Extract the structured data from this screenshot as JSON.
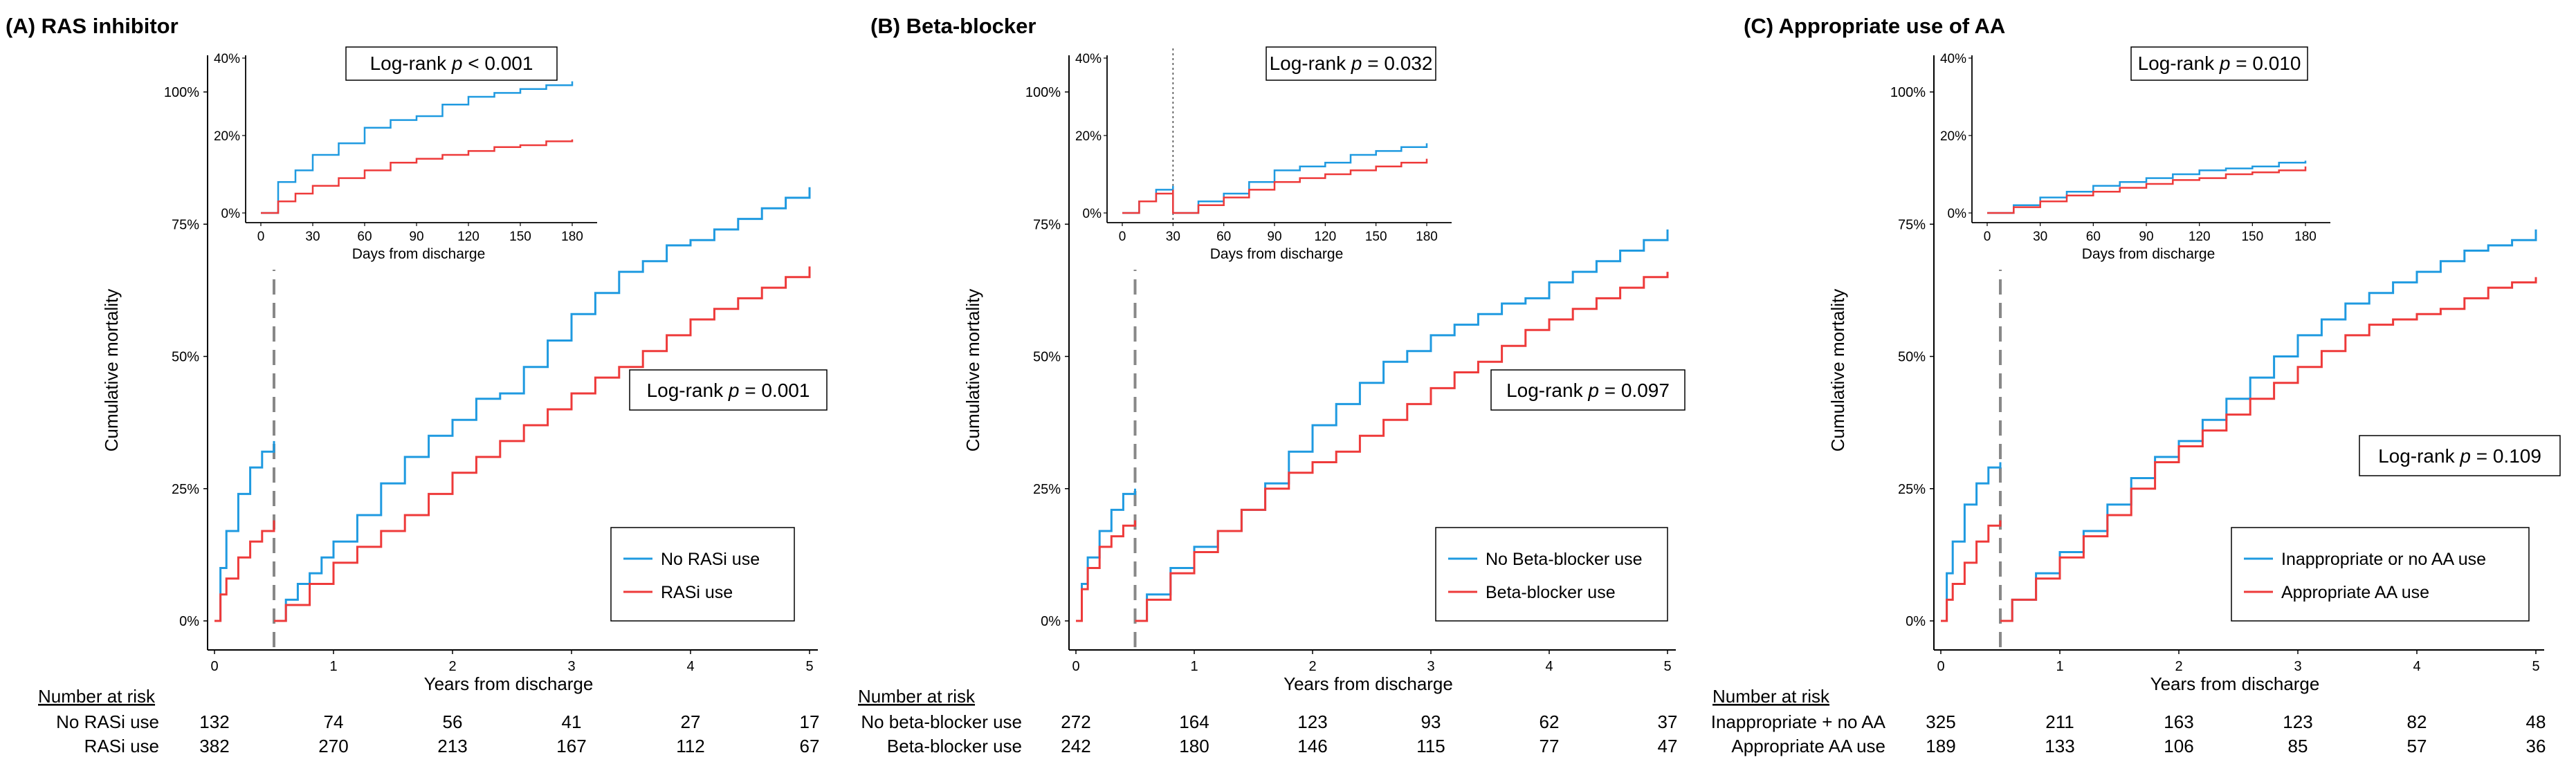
{
  "figure": {
    "panels": [
      {
        "title": "(A) RAS inhibitor",
        "ylabel": "Cumulative mortality",
        "xlabel": "Years from discharge",
        "logrank": {
          "prefix": "Log-rank ",
          "p": "p",
          "suffix": " = 0.001"
        },
        "inset": {
          "logrank": {
            "prefix": "Log-rank ",
            "p": "p",
            "suffix": " < 0.001"
          },
          "xlabel": "Days from discharge"
        },
        "legend": [
          "No RASi use",
          "RASi use"
        ],
        "risk_title": "Number at risk",
        "risk_rows": [
          {
            "label": "No RASi use",
            "values": [
              "132",
              "74",
              "56",
              "41",
              "27",
              "17"
            ]
          },
          {
            "label": "RASi use",
            "values": [
              "382",
              "270",
              "213",
              "167",
              "112",
              "67"
            ]
          }
        ]
      },
      {
        "title": "(B) Beta-blocker",
        "ylabel": "Cumulative mortality",
        "xlabel": "Years from discharge",
        "logrank": {
          "prefix": "Log-rank ",
          "p": "p",
          "suffix": " = 0.097"
        },
        "inset": {
          "logrank": {
            "prefix": "Log-rank ",
            "p": "p",
            "suffix": " = 0.032"
          },
          "xlabel": "Days from discharge"
        },
        "legend": [
          "No Beta-blocker use",
          "Beta-blocker use"
        ],
        "risk_title": "Number at risk",
        "risk_rows": [
          {
            "label": "No beta-blocker use",
            "values": [
              "272",
              "164",
              "123",
              "93",
              "62",
              "37"
            ]
          },
          {
            "label": "Beta-blocker use",
            "values": [
              "242",
              "180",
              "146",
              "115",
              "77",
              "47"
            ]
          }
        ]
      },
      {
        "title": "(C) Appropriate use of AA",
        "ylabel": "Cumulative mortality",
        "xlabel": "Years from discharge",
        "logrank": {
          "prefix": "Log-rank ",
          "p": "p",
          "suffix": " = 0.109"
        },
        "inset": {
          "logrank": {
            "prefix": "Log-rank ",
            "p": "p",
            "suffix": " = 0.010"
          },
          "xlabel": "Days from discharge"
        },
        "legend": [
          "Inappropriate or no AA use",
          "Appropriate AA use"
        ],
        "risk_title": "Number at risk",
        "risk_rows": [
          {
            "label": "Inappropriate + no AA",
            "values": [
              "325",
              "211",
              "163",
              "123",
              "82",
              "48"
            ]
          },
          {
            "label": "Appropriate AA use",
            "values": [
              "189",
              "133",
              "106",
              "85",
              "57",
              "36"
            ]
          }
        ]
      }
    ]
  },
  "chart_data": [
    {
      "type": "line",
      "title": "(A) RAS inhibitor",
      "xlabel": "Years from discharge",
      "ylabel": "Cumulative mortality",
      "xlim": [
        0,
        5
      ],
      "ylim": [
        0,
        1
      ],
      "x_ticks": [
        "0",
        "1",
        "2",
        "3",
        "4",
        "5"
      ],
      "y_ticks": [
        "0%",
        "25%",
        "50%",
        "75%",
        "100%"
      ],
      "landmark_year": 0.5,
      "colors": [
        "#1f9ae0",
        "#ee3a3a"
      ],
      "series": [
        {
          "name": "No RASi use",
          "color": "#1f9ae0",
          "x": [
            0,
            0.05,
            0.1,
            0.2,
            0.3,
            0.4,
            0.5
          ],
          "y": [
            0,
            0.1,
            0.17,
            0.24,
            0.29,
            0.32,
            0.34
          ],
          "x2": [
            0.5,
            0.6,
            0.7,
            0.8,
            0.9,
            1.0,
            1.2,
            1.4,
            1.6,
            1.8,
            2.0,
            2.2,
            2.4,
            2.6,
            2.8,
            3.0,
            3.2,
            3.4,
            3.6,
            3.8,
            4.0,
            4.2,
            4.4,
            4.6,
            4.8,
            5.0
          ],
          "y2": [
            0,
            0.04,
            0.07,
            0.09,
            0.12,
            0.15,
            0.2,
            0.26,
            0.31,
            0.35,
            0.38,
            0.42,
            0.43,
            0.48,
            0.53,
            0.58,
            0.62,
            0.66,
            0.68,
            0.71,
            0.72,
            0.74,
            0.76,
            0.78,
            0.8,
            0.82
          ]
        },
        {
          "name": "RASi use",
          "color": "#ee3a3a",
          "x": [
            0,
            0.05,
            0.1,
            0.2,
            0.3,
            0.4,
            0.5
          ],
          "y": [
            0,
            0.05,
            0.08,
            0.12,
            0.15,
            0.17,
            0.19
          ],
          "x2": [
            0.5,
            0.6,
            0.8,
            1.0,
            1.2,
            1.4,
            1.6,
            1.8,
            2.0,
            2.2,
            2.4,
            2.6,
            2.8,
            3.0,
            3.2,
            3.4,
            3.6,
            3.8,
            4.0,
            4.2,
            4.4,
            4.6,
            4.8,
            5.0
          ],
          "y2": [
            0,
            0.03,
            0.07,
            0.11,
            0.14,
            0.17,
            0.2,
            0.24,
            0.28,
            0.31,
            0.34,
            0.37,
            0.4,
            0.43,
            0.46,
            0.48,
            0.51,
            0.54,
            0.57,
            0.59,
            0.61,
            0.63,
            0.65,
            0.67
          ]
        }
      ],
      "inset": {
        "xlabel": "Days from discharge",
        "xlim": [
          0,
          180
        ],
        "ylim": [
          0,
          0.4
        ],
        "x_ticks": [
          "0",
          "30",
          "60",
          "90",
          "120",
          "150",
          "180"
        ],
        "y_ticks": [
          "0%",
          "20%",
          "40%"
        ],
        "series": [
          {
            "name": "No RASi use",
            "x": [
              0,
              10,
              20,
              30,
              45,
              60,
              75,
              90,
              105,
              120,
              135,
              150,
              165,
              180
            ],
            "y": [
              0,
              0.08,
              0.11,
              0.15,
              0.18,
              0.22,
              0.24,
              0.25,
              0.28,
              0.3,
              0.31,
              0.32,
              0.33,
              0.34
            ]
          },
          {
            "name": "RASi use",
            "x": [
              0,
              10,
              20,
              30,
              45,
              60,
              75,
              90,
              105,
              120,
              135,
              150,
              165,
              180
            ],
            "y": [
              0,
              0.03,
              0.05,
              0.07,
              0.09,
              0.11,
              0.13,
              0.14,
              0.15,
              0.16,
              0.17,
              0.175,
              0.185,
              0.19
            ]
          }
        ]
      }
    },
    {
      "type": "line",
      "title": "(B) Beta-blocker",
      "xlabel": "Years from discharge",
      "ylabel": "Cumulative mortality",
      "xlim": [
        0,
        5
      ],
      "ylim": [
        0,
        1
      ],
      "x_ticks": [
        "0",
        "1",
        "2",
        "3",
        "4",
        "5"
      ],
      "y_ticks": [
        "0%",
        "25%",
        "50%",
        "75%",
        "100%"
      ],
      "landmark_year": 0.5,
      "colors": [
        "#1f9ae0",
        "#ee3a3a"
      ],
      "series": [
        {
          "name": "No Beta-blocker use",
          "color": "#1f9ae0",
          "x": [
            0,
            0.05,
            0.1,
            0.2,
            0.3,
            0.4,
            0.5
          ],
          "y": [
            0,
            0.07,
            0.12,
            0.17,
            0.21,
            0.24,
            0.25
          ],
          "x2": [
            0.5,
            0.6,
            0.8,
            1.0,
            1.2,
            1.4,
            1.6,
            1.8,
            2.0,
            2.2,
            2.4,
            2.6,
            2.8,
            3.0,
            3.2,
            3.4,
            3.6,
            3.8,
            4.0,
            4.2,
            4.4,
            4.6,
            4.8,
            5.0
          ],
          "y2": [
            0,
            0.05,
            0.1,
            0.14,
            0.17,
            0.21,
            0.26,
            0.32,
            0.37,
            0.41,
            0.45,
            0.49,
            0.51,
            0.54,
            0.56,
            0.58,
            0.6,
            0.61,
            0.64,
            0.66,
            0.68,
            0.7,
            0.72,
            0.74
          ]
        },
        {
          "name": "Beta-blocker use",
          "color": "#ee3a3a",
          "x": [
            0,
            0.05,
            0.1,
            0.2,
            0.3,
            0.4,
            0.5
          ],
          "y": [
            0,
            0.06,
            0.1,
            0.14,
            0.16,
            0.18,
            0.19
          ],
          "x2": [
            0.5,
            0.6,
            0.8,
            1.0,
            1.2,
            1.4,
            1.6,
            1.8,
            2.0,
            2.2,
            2.4,
            2.6,
            2.8,
            3.0,
            3.2,
            3.4,
            3.6,
            3.8,
            4.0,
            4.2,
            4.4,
            4.6,
            4.8,
            5.0
          ],
          "y2": [
            0,
            0.04,
            0.09,
            0.13,
            0.17,
            0.21,
            0.25,
            0.28,
            0.3,
            0.32,
            0.35,
            0.38,
            0.41,
            0.44,
            0.47,
            0.49,
            0.52,
            0.55,
            0.57,
            0.59,
            0.61,
            0.63,
            0.65,
            0.66
          ]
        }
      ],
      "inset": {
        "xlabel": "Days from discharge",
        "xlim": [
          0,
          180
        ],
        "ylim": [
          0,
          0.4
        ],
        "x_ticks": [
          "0",
          "30",
          "60",
          "90",
          "120",
          "150",
          "180"
        ],
        "y_ticks": [
          "0%",
          "20%",
          "40%"
        ],
        "landmark_day": 30,
        "series": [
          {
            "name": "No Beta-blocker use",
            "x": [
              0,
              10,
              20,
              30,
              30,
              45,
              60,
              75,
              90,
              105,
              120,
              135,
              150,
              165,
              180
            ],
            "y": [
              0,
              0.03,
              0.06,
              0.07,
              0,
              0.03,
              0.05,
              0.08,
              0.11,
              0.12,
              0.13,
              0.15,
              0.16,
              0.17,
              0.18
            ]
          },
          {
            "name": "Beta-blocker use",
            "x": [
              0,
              10,
              20,
              30,
              30,
              45,
              60,
              75,
              90,
              105,
              120,
              135,
              150,
              165,
              180
            ],
            "y": [
              0,
              0.03,
              0.05,
              0.06,
              0,
              0.02,
              0.04,
              0.06,
              0.08,
              0.09,
              0.1,
              0.11,
              0.12,
              0.13,
              0.14
            ]
          }
        ]
      }
    },
    {
      "type": "line",
      "title": "(C) Appropriate use of AA",
      "xlabel": "Years from discharge",
      "ylabel": "Cumulative mortality",
      "xlim": [
        0,
        5
      ],
      "ylim": [
        0,
        1
      ],
      "x_ticks": [
        "0",
        "1",
        "2",
        "3",
        "4",
        "5"
      ],
      "y_ticks": [
        "0%",
        "25%",
        "50%",
        "75%",
        "100%"
      ],
      "landmark_year": 0.5,
      "colors": [
        "#1f9ae0",
        "#ee3a3a"
      ],
      "series": [
        {
          "name": "Inappropriate or no AA use",
          "color": "#1f9ae0",
          "x": [
            0,
            0.05,
            0.1,
            0.2,
            0.3,
            0.4,
            0.5
          ],
          "y": [
            0,
            0.09,
            0.15,
            0.22,
            0.26,
            0.29,
            0.3
          ],
          "x2": [
            0.5,
            0.6,
            0.8,
            1.0,
            1.2,
            1.4,
            1.6,
            1.8,
            2.0,
            2.2,
            2.4,
            2.6,
            2.8,
            3.0,
            3.2,
            3.4,
            3.6,
            3.8,
            4.0,
            4.2,
            4.4,
            4.6,
            4.8,
            5.0
          ],
          "y2": [
            0,
            0.04,
            0.09,
            0.13,
            0.17,
            0.22,
            0.27,
            0.31,
            0.34,
            0.38,
            0.42,
            0.46,
            0.5,
            0.54,
            0.57,
            0.6,
            0.62,
            0.64,
            0.66,
            0.68,
            0.7,
            0.71,
            0.72,
            0.74
          ]
        },
        {
          "name": "Appropriate AA use",
          "color": "#ee3a3a",
          "x": [
            0,
            0.05,
            0.1,
            0.2,
            0.3,
            0.4,
            0.5
          ],
          "y": [
            0,
            0.04,
            0.07,
            0.11,
            0.15,
            0.18,
            0.19
          ],
          "x2": [
            0.5,
            0.6,
            0.8,
            1.0,
            1.2,
            1.4,
            1.6,
            1.8,
            2.0,
            2.2,
            2.4,
            2.6,
            2.8,
            3.0,
            3.2,
            3.4,
            3.6,
            3.8,
            4.0,
            4.2,
            4.4,
            4.6,
            4.8,
            5.0
          ],
          "y2": [
            0,
            0.04,
            0.08,
            0.12,
            0.16,
            0.2,
            0.25,
            0.3,
            0.33,
            0.36,
            0.39,
            0.42,
            0.45,
            0.48,
            0.51,
            0.54,
            0.56,
            0.57,
            0.58,
            0.59,
            0.61,
            0.63,
            0.64,
            0.65
          ]
        }
      ],
      "inset": {
        "xlabel": "",
        "xlim": [
          0,
          180
        ],
        "ylim": [
          0,
          0.4
        ],
        "x_ticks": [
          "0",
          "30",
          "60",
          "90",
          "120",
          "150",
          "180"
        ],
        "y_ticks": [
          "0%",
          "20%",
          "40%"
        ],
        "series": [
          {
            "name": "Inappropriate or no AA use",
            "x": [
              0,
              15,
              30,
              45,
              60,
              75,
              90,
              105,
              120,
              135,
              150,
              165,
              180
            ],
            "y": [
              0,
              0.02,
              0.04,
              0.055,
              0.07,
              0.08,
              0.09,
              0.1,
              0.11,
              0.115,
              0.12,
              0.13,
              0.135
            ]
          },
          {
            "name": "Appropriate AA use",
            "x": [
              0,
              15,
              30,
              45,
              60,
              75,
              90,
              105,
              120,
              135,
              150,
              165,
              180
            ],
            "y": [
              0,
              0.015,
              0.03,
              0.045,
              0.055,
              0.065,
              0.075,
              0.085,
              0.09,
              0.1,
              0.105,
              0.11,
              0.12
            ]
          }
        ]
      }
    }
  ]
}
